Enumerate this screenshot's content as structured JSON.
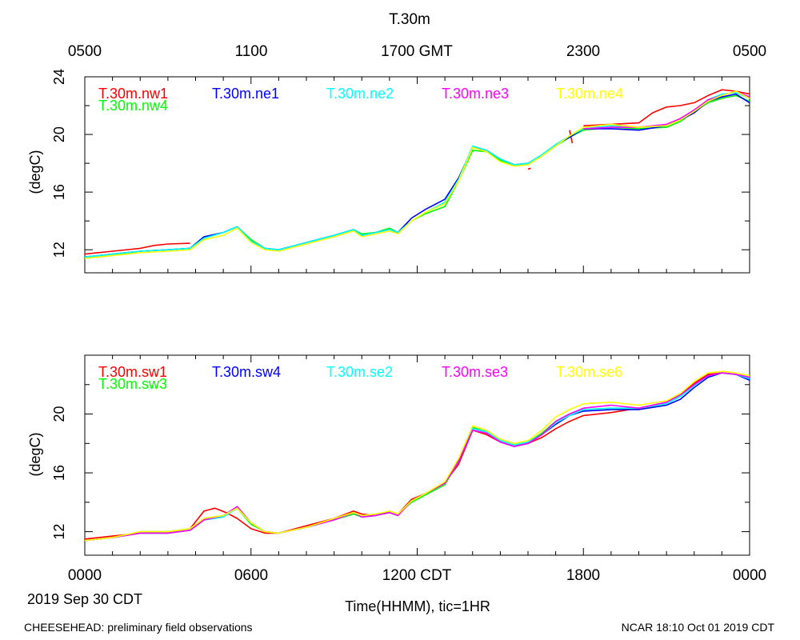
{
  "title": "T.30m",
  "top_axis": {
    "tick_labels": [
      "0500",
      "1100",
      "1700 GMT",
      "2300",
      "0500"
    ]
  },
  "bottom_axis": {
    "tick_labels": [
      "0000",
      "0600",
      "1200 CDT",
      "1800",
      "0000"
    ],
    "date_label": "2019 Sep 30 CDT",
    "xlabel": "Time(HHMM), tic=1HR"
  },
  "footer": {
    "left": "CHEESEHEAD: preliminary field observations",
    "right": "NCAR 18:10 Oct 01 2019 CDT"
  },
  "chart_data": [
    {
      "type": "line",
      "title": "T.30m",
      "ylabel": "(degC)",
      "xlabel": "Time(HHMM), tic=1HR",
      "xlim": [
        0,
        24
      ],
      "ylim": [
        10.4,
        24
      ],
      "yticks": [
        12,
        16,
        20,
        24
      ],
      "y_minor_step": 2,
      "x_unit": "hours since 0000 CDT 2019 Sep 30",
      "series": [
        {
          "name": "T.30m.nw1",
          "color": "#ff0000",
          "x": [
            0,
            1,
            2,
            2.5,
            3,
            3.8
          ],
          "y": [
            11.7,
            11.9,
            12.1,
            12.3,
            12.4,
            12.45
          ]
        },
        {
          "name": "T.30m.nw1",
          "color": "#ff0000",
          "legend": false,
          "x": [
            17.5,
            17.6
          ],
          "y": [
            20.3,
            19.4
          ]
        },
        {
          "name": "T.30m.nw1",
          "color": "#ff0000",
          "legend": false,
          "x": [
            16,
            16.1
          ],
          "y": [
            17.6,
            17.65
          ]
        },
        {
          "name": "T.30m.nw1",
          "color": "#ff0000",
          "legend": false,
          "x": [
            18,
            19,
            20,
            20.5,
            21,
            21.5,
            22,
            22.5,
            23,
            23.5,
            24
          ],
          "y": [
            20.6,
            20.7,
            20.8,
            21.5,
            21.9,
            22.0,
            22.2,
            22.7,
            23.1,
            23.0,
            22.8
          ]
        },
        {
          "name": "T.30m.nw4",
          "color": "#00ff00",
          "x": [
            0,
            1,
            2,
            3,
            3.8,
            4.3,
            5,
            5.5,
            6,
            6.5,
            7,
            8,
            9,
            9.7,
            10,
            10.5,
            11,
            11.3,
            11.8,
            12.3,
            13,
            13.5,
            14,
            14.5,
            15,
            15.5,
            16,
            16.5,
            17,
            17.5,
            18,
            19,
            20,
            21,
            21.5,
            22,
            22.5,
            23,
            23.5,
            24
          ],
          "y": [
            11.4,
            11.6,
            11.9,
            12.0,
            12.1,
            12.9,
            13.2,
            13.6,
            12.7,
            12.1,
            12.0,
            12.5,
            13.0,
            13.4,
            13.1,
            13.2,
            13.5,
            13.2,
            14.0,
            14.5,
            15.0,
            16.8,
            18.9,
            18.8,
            18.2,
            17.9,
            17.9,
            18.5,
            19.2,
            19.8,
            20.3,
            20.5,
            20.4,
            20.5,
            20.9,
            21.6,
            22.2,
            22.5,
            22.7,
            22.3
          ]
        },
        {
          "name": "T.30m.ne1",
          "color": "#0000ff",
          "x": [
            0,
            1,
            2,
            3,
            3.8,
            4.3,
            5,
            5.5,
            6,
            6.5,
            7,
            8,
            9,
            9.7,
            10,
            10.5,
            11,
            11.3,
            11.8,
            12.3,
            13,
            13.5,
            14,
            14.5,
            15,
            15.5,
            16,
            16.5,
            17,
            17.5,
            18,
            19,
            20,
            21,
            21.5,
            22,
            22.5,
            23,
            23.5,
            24
          ],
          "y": [
            11.5,
            11.7,
            11.9,
            12.0,
            12.1,
            12.9,
            13.2,
            13.6,
            12.6,
            12.1,
            12.0,
            12.5,
            13.0,
            13.4,
            13.0,
            13.2,
            13.4,
            13.2,
            14.2,
            14.8,
            15.5,
            17.0,
            19.1,
            18.9,
            18.3,
            17.9,
            18.0,
            18.5,
            19.3,
            19.8,
            20.4,
            20.4,
            20.3,
            20.6,
            21.0,
            21.5,
            22.3,
            22.6,
            22.8,
            22.2
          ]
        },
        {
          "name": "T.30m.ne2",
          "color": "#00ffff",
          "x": [
            0,
            1,
            2,
            3,
            3.8,
            4.3,
            5,
            5.5,
            6,
            6.5,
            7,
            8,
            9,
            9.7,
            10,
            10.5,
            11,
            11.3,
            11.8,
            12.3,
            13,
            13.5,
            14,
            14.5,
            15,
            15.5,
            16,
            16.5,
            17,
            17.5,
            18,
            19,
            20,
            21,
            21.5,
            22,
            22.5,
            23,
            23.5,
            24
          ],
          "y": [
            11.5,
            11.7,
            11.9,
            12.0,
            12.1,
            12.8,
            13.2,
            13.6,
            12.6,
            12.1,
            12.0,
            12.5,
            13.0,
            13.4,
            13.0,
            13.2,
            13.4,
            13.2,
            14.0,
            14.6,
            15.3,
            16.9,
            19.2,
            18.9,
            18.3,
            17.9,
            18.0,
            18.6,
            19.3,
            19.9,
            20.4,
            20.6,
            20.5,
            20.6,
            21.0,
            21.6,
            22.4,
            22.8,
            22.9,
            22.5
          ]
        },
        {
          "name": "T.30m.ne3",
          "color": "#ff00ff",
          "x": [
            18,
            19,
            20,
            21,
            21.5,
            22,
            22.5,
            23,
            23.5,
            24
          ],
          "y": [
            20.4,
            20.5,
            20.5,
            20.7,
            21.1,
            21.7,
            22.4,
            22.7,
            23.0,
            22.6
          ]
        },
        {
          "name": "T.30m.ne4",
          "color": "#ffff00",
          "x": [
            0,
            1,
            2,
            3,
            3.8,
            4.3,
            5,
            5.5,
            6,
            6.5,
            7,
            8,
            9,
            9.7,
            10,
            10.5,
            11,
            11.3,
            11.8,
            12.3,
            13,
            13.5,
            14,
            14.5,
            15,
            15.5,
            16,
            16.5,
            17,
            17.5,
            18,
            19,
            20,
            21,
            21.5,
            22,
            22.5,
            23,
            23.5,
            24
          ],
          "y": [
            11.4,
            11.6,
            11.8,
            11.9,
            12.0,
            12.7,
            13.0,
            13.5,
            12.5,
            12.0,
            11.9,
            12.4,
            12.9,
            13.3,
            12.9,
            13.1,
            13.3,
            13.1,
            14.0,
            14.6,
            15.2,
            16.8,
            19.1,
            18.8,
            18.1,
            17.8,
            17.9,
            18.5,
            19.2,
            19.9,
            20.5,
            20.7,
            20.5,
            20.6,
            21.0,
            21.6,
            22.3,
            22.7,
            23.0,
            22.5
          ]
        }
      ],
      "legend_labels": [
        "T.30m.nw1",
        "T.30m.ne1",
        "T.30m.ne2",
        "T.30m.ne3",
        "T.30m.ne4",
        "T.30m.nw4"
      ],
      "legend_colors": [
        "#ff0000",
        "#0000ff",
        "#00ffff",
        "#ff00ff",
        "#ffff00",
        "#00ff00"
      ]
    },
    {
      "type": "line",
      "ylabel": "(degC)",
      "xlim": [
        0,
        24
      ],
      "ylim": [
        10.4,
        24
      ],
      "yticks": [
        12,
        16,
        20
      ],
      "y_minor_step": 2,
      "series": [
        {
          "name": "T.30m.sw1",
          "color": "#ff0000",
          "x": [
            0,
            1,
            2,
            3,
            3.8,
            4.3,
            4.7,
            5.1,
            5.5,
            6,
            6.5,
            7,
            8,
            9,
            9.7,
            10,
            10.5,
            11,
            11.3,
            11.8,
            12.3,
            13,
            13.5,
            14,
            14.5,
            15,
            15.5,
            16,
            16.5,
            17,
            17.5,
            18,
            19,
            20,
            21,
            21.5,
            22,
            22.5,
            23,
            23.5,
            24
          ],
          "y": [
            11.5,
            11.7,
            11.9,
            12.0,
            12.2,
            13.4,
            13.6,
            13.3,
            12.9,
            12.2,
            11.9,
            11.9,
            12.4,
            12.9,
            13.4,
            13.2,
            13.1,
            13.4,
            13.2,
            14.2,
            14.6,
            15.3,
            16.6,
            18.9,
            18.6,
            18.1,
            17.8,
            18.0,
            18.4,
            19.0,
            19.5,
            19.9,
            20.1,
            20.4,
            20.8,
            21.3,
            22.1,
            22.7,
            22.8,
            22.7,
            22.4
          ]
        },
        {
          "name": "T.30m.sw3",
          "color": "#00ff00",
          "x": [
            0,
            1,
            2,
            3,
            3.8,
            4.3,
            5,
            5.5,
            6,
            6.5,
            7,
            8,
            9,
            9.7,
            10,
            10.5,
            11,
            11.3,
            11.8,
            12.3,
            13,
            13.5,
            14,
            14.5,
            15,
            15.5,
            16,
            16.5,
            17,
            17.5,
            18,
            19,
            20,
            21,
            21.5,
            22,
            22.5,
            23,
            23.5,
            24
          ],
          "y": [
            11.4,
            11.6,
            12.0,
            12.0,
            12.2,
            12.9,
            13.1,
            13.6,
            12.5,
            12.0,
            11.9,
            12.3,
            12.8,
            13.2,
            13.0,
            13.1,
            13.4,
            13.2,
            14.0,
            14.5,
            15.2,
            16.8,
            19.1,
            18.8,
            18.2,
            17.9,
            18.1,
            18.7,
            19.5,
            20.0,
            20.3,
            20.4,
            20.3,
            20.7,
            21.2,
            21.9,
            22.5,
            22.8,
            22.7,
            22.5
          ]
        },
        {
          "name": "T.30m.sw4",
          "color": "#0000ff",
          "x": [
            0,
            1,
            2,
            3,
            3.8,
            4.3,
            5,
            5.5,
            6,
            6.5,
            7,
            8,
            9,
            9.7,
            10,
            10.5,
            11,
            11.3,
            11.8,
            12.3,
            13,
            13.5,
            14,
            14.5,
            15,
            15.5,
            16,
            16.5,
            17,
            17.5,
            18,
            19,
            20,
            21,
            21.5,
            22,
            22.5,
            23,
            23.5,
            24
          ],
          "y": [
            11.4,
            11.6,
            11.9,
            11.9,
            12.1,
            12.8,
            13.0,
            13.7,
            12.6,
            12.0,
            11.9,
            12.3,
            12.8,
            13.3,
            13.0,
            13.1,
            13.3,
            13.1,
            14.1,
            14.6,
            15.3,
            16.9,
            19.0,
            18.8,
            18.1,
            17.8,
            18.0,
            18.6,
            19.3,
            19.9,
            20.2,
            20.3,
            20.3,
            20.6,
            21.0,
            21.8,
            22.5,
            22.8,
            22.7,
            22.3
          ]
        },
        {
          "name": "T.30m.se2",
          "color": "#00ffff",
          "x": [
            0,
            1,
            2,
            3,
            3.8,
            4.3,
            5,
            5.5,
            6,
            6.5,
            7,
            8,
            9,
            9.7,
            10,
            10.5,
            11,
            11.3,
            11.8,
            12.3,
            13,
            13.5,
            14,
            14.5,
            15,
            15.5,
            16,
            16.5,
            17,
            17.5,
            18,
            19,
            20,
            21,
            21.5,
            22,
            22.5,
            23,
            23.5,
            24
          ],
          "y": [
            11.4,
            11.6,
            11.9,
            11.9,
            12.1,
            12.8,
            13.0,
            13.6,
            12.6,
            12.0,
            11.9,
            12.3,
            12.8,
            13.3,
            13.0,
            13.1,
            13.3,
            13.1,
            14.1,
            14.6,
            15.3,
            16.8,
            19.0,
            18.8,
            18.2,
            17.9,
            18.1,
            18.6,
            19.4,
            19.9,
            20.3,
            20.4,
            20.4,
            20.7,
            21.2,
            21.9,
            22.6,
            22.8,
            22.7,
            22.4
          ]
        },
        {
          "name": "T.30m.se3",
          "color": "#ff00ff",
          "x": [
            0,
            1,
            2,
            3,
            3.8,
            4.3,
            5,
            5.5,
            6,
            6.5,
            7,
            8,
            9,
            9.7,
            10,
            10.5,
            11,
            11.3,
            11.8,
            12.3,
            13,
            13.5,
            14,
            14.5,
            15,
            15.5,
            16,
            16.5,
            17,
            17.5,
            18,
            19,
            20,
            21,
            21.5,
            22,
            22.5,
            23,
            23.5,
            24
          ],
          "y": [
            11.4,
            11.6,
            11.9,
            11.9,
            12.1,
            12.8,
            13.1,
            13.7,
            12.6,
            12.0,
            11.9,
            12.3,
            12.8,
            13.3,
            13.0,
            13.1,
            13.3,
            13.1,
            14.1,
            14.6,
            15.3,
            16.8,
            18.9,
            18.7,
            18.1,
            17.8,
            18.0,
            18.6,
            19.5,
            20.0,
            20.4,
            20.6,
            20.4,
            20.8,
            21.3,
            22.0,
            22.6,
            22.8,
            22.7,
            22.5
          ]
        },
        {
          "name": "T.30m.se6",
          "color": "#ffff00",
          "x": [
            0,
            1,
            2,
            3,
            3.8,
            4.3,
            5,
            5.5,
            6,
            6.5,
            7,
            8,
            9,
            9.7,
            10,
            10.5,
            11,
            11.3,
            11.8,
            12.3,
            13,
            13.5,
            14,
            14.5,
            15,
            15.5,
            16,
            16.5,
            17,
            17.5,
            18,
            19,
            20,
            21,
            21.5,
            22,
            22.5,
            23,
            23.5,
            24
          ],
          "y": [
            11.4,
            11.6,
            12.0,
            12.0,
            12.2,
            12.9,
            13.1,
            13.6,
            12.6,
            12.0,
            11.9,
            12.3,
            12.9,
            13.3,
            13.1,
            13.2,
            13.4,
            13.2,
            14.1,
            14.6,
            15.4,
            17.0,
            19.2,
            18.9,
            18.3,
            18.0,
            18.2,
            18.9,
            19.8,
            20.3,
            20.7,
            20.8,
            20.6,
            20.9,
            21.4,
            22.2,
            22.8,
            22.9,
            22.8,
            22.6
          ]
        }
      ],
      "legend_labels": [
        "T.30m.sw1",
        "T.30m.sw4",
        "T.30m.se2",
        "T.30m.se3",
        "T.30m.se6",
        "T.30m.sw3"
      ],
      "legend_colors": [
        "#ff0000",
        "#0000ff",
        "#00ffff",
        "#ff00ff",
        "#ffff00",
        "#00ff00"
      ]
    }
  ]
}
